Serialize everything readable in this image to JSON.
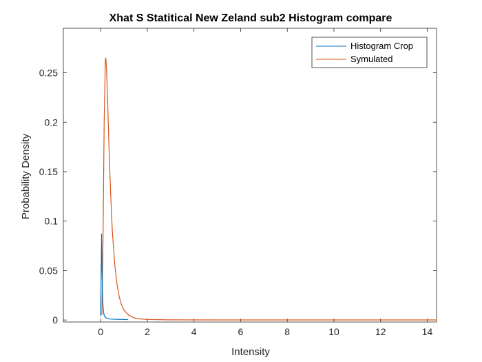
{
  "chart_data": {
    "type": "line",
    "title": "Xhat S Statitical New Zeland sub2  Histogram compare",
    "xlabel": "Intensity",
    "ylabel": "Probability Density",
    "xlim": [
      -1.6,
      14.4
    ],
    "ylim": [
      -0.002,
      0.295
    ],
    "xticks": [
      0,
      2,
      4,
      6,
      8,
      10,
      12,
      14
    ],
    "yticks": [
      0,
      0.05,
      0.1,
      0.15,
      0.2,
      0.25
    ],
    "ytick_labels": [
      "0",
      "0.05",
      "0.1",
      "0.15",
      "0.2",
      "0.25"
    ],
    "grid": false,
    "legend_position": "top-right",
    "series": [
      {
        "name": "Histogram Crop",
        "color": "#0072BD",
        "x": [
          0.0,
          0.02,
          0.04,
          0.06,
          0.08,
          0.1,
          0.12,
          0.14,
          0.16,
          0.2,
          0.25,
          0.3,
          0.4,
          0.6,
          0.8,
          1.0,
          1.18
        ],
        "y": [
          0.004,
          0.045,
          0.087,
          0.05,
          0.025,
          0.014,
          0.009,
          0.006,
          0.004,
          0.003,
          0.002,
          0.0015,
          0.001,
          0.0008,
          0.0006,
          0.0005,
          0.0004
        ]
      },
      {
        "name": "Symulated",
        "color": "#D95319",
        "x": [
          0.05,
          0.1,
          0.15,
          0.2,
          0.22,
          0.25,
          0.3,
          0.35,
          0.4,
          0.45,
          0.5,
          0.6,
          0.7,
          0.8,
          0.9,
          1.0,
          1.2,
          1.4,
          1.6,
          2.0,
          3.0,
          5.0,
          8.0,
          11.0,
          14.4
        ],
        "y": [
          0.005,
          0.08,
          0.2,
          0.262,
          0.265,
          0.255,
          0.22,
          0.18,
          0.145,
          0.115,
          0.09,
          0.057,
          0.036,
          0.023,
          0.015,
          0.01,
          0.005,
          0.0025,
          0.0013,
          0.0005,
          0.0002,
          0.0001,
          0.0001,
          0.0001,
          0.0001
        ]
      }
    ]
  }
}
